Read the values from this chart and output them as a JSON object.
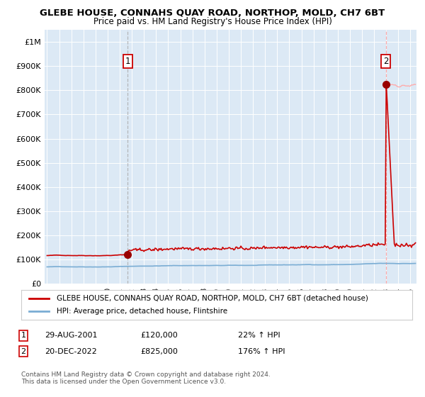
{
  "title": "GLEBE HOUSE, CONNAHS QUAY ROAD, NORTHOP, MOLD, CH7 6BT",
  "subtitle": "Price paid vs. HM Land Registry's House Price Index (HPI)",
  "bg_color": "#dce9f5",
  "fig_bg_color": "#ffffff",
  "hpi_color": "#7aadd4",
  "house_color": "#cc0000",
  "house_color_light": "#ffaaaa",
  "marker_color": "#990000",
  "dashed_color": "#aaaaaa",
  "sale1_date_num": 2001.66,
  "sale1_price": 120000,
  "sale2_date_num": 2022.97,
  "sale2_price": 825000,
  "ylim": [
    0,
    1050000
  ],
  "xlim": [
    1994.8,
    2025.5
  ],
  "yticks": [
    0,
    100000,
    200000,
    300000,
    400000,
    500000,
    600000,
    700000,
    800000,
    900000,
    1000000
  ],
  "ytick_labels": [
    "£0",
    "£100K",
    "£200K",
    "£300K",
    "£400K",
    "£500K",
    "£600K",
    "£700K",
    "£800K",
    "£900K",
    "£1M"
  ],
  "legend_house_label": "GLEBE HOUSE, CONNAHS QUAY ROAD, NORTHOP, MOLD, CH7 6BT (detached house)",
  "legend_hpi_label": "HPI: Average price, detached house, Flintshire",
  "note1_date": "29-AUG-2001",
  "note1_price": "£120,000",
  "note1_hpi": "22% ↑ HPI",
  "note2_date": "20-DEC-2022",
  "note2_price": "£825,000",
  "note2_hpi": "176% ↑ HPI",
  "footer": "Contains HM Land Registry data © Crown copyright and database right 2024.\nThis data is licensed under the Open Government Licence v3.0."
}
